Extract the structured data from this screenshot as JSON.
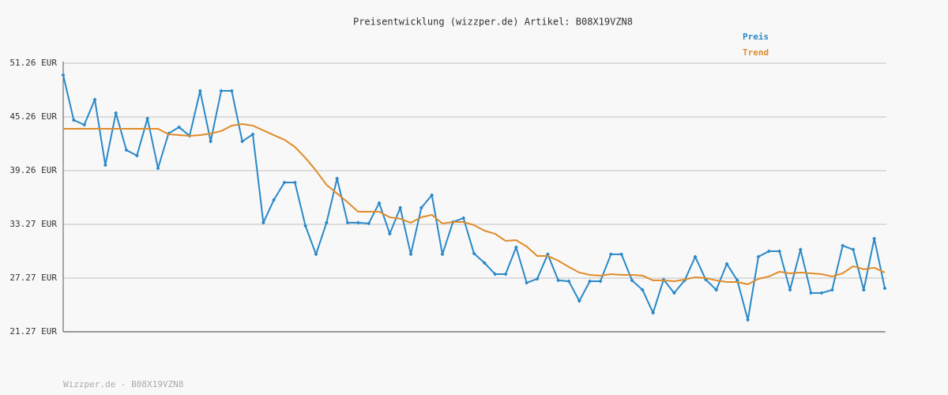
{
  "chart_data": {
    "type": "line",
    "title": "Preisentwicklung (wizzper.de) Artikel: B08X19VZN8",
    "footer": "Wizzper.de - B08X19VZN8",
    "legend": "top-right",
    "grid": true,
    "ylim": [
      21.27,
      51.26
    ],
    "yticks": [
      {
        "value": 21.27,
        "label": "21.27 EUR"
      },
      {
        "value": 27.27,
        "label": "27.27 EUR"
      },
      {
        "value": 33.27,
        "label": "33.27 EUR"
      },
      {
        "value": 39.26,
        "label": "39.26 EUR"
      },
      {
        "value": 45.26,
        "label": "45.26 EUR"
      },
      {
        "value": 51.26,
        "label": "51.26 EUR"
      }
    ],
    "series": [
      {
        "name": "Preis",
        "color": "#2a88c8",
        "markers": true,
        "values": [
          49.94,
          44.91,
          44.38,
          47.2,
          39.88,
          45.7,
          41.56,
          40.94,
          45.09,
          39.53,
          43.41,
          44.12,
          43.15,
          48.17,
          42.53,
          48.17,
          48.17,
          42.53,
          43.32,
          33.45,
          36.0,
          37.94,
          37.94,
          33.09,
          29.92,
          33.45,
          38.38,
          33.45,
          33.45,
          33.36,
          35.65,
          32.21,
          35.12,
          29.92,
          35.12,
          36.53,
          29.92,
          33.53,
          33.97,
          30.01,
          28.95,
          27.71,
          27.71,
          30.71,
          26.74,
          27.18,
          29.92,
          27.01,
          26.92,
          24.71,
          26.92,
          26.92,
          29.92,
          29.92,
          27.01,
          25.95,
          23.39,
          27.1,
          25.6,
          27.01,
          29.65,
          27.1,
          25.95,
          28.86,
          27.01,
          22.6,
          29.65,
          30.27,
          30.27,
          25.95,
          30.45,
          25.6,
          25.6,
          25.95,
          30.89,
          30.45,
          25.95,
          31.68,
          26.13
        ]
      },
      {
        "name": "Trend",
        "color": "#e08c28",
        "markers": false,
        "values": [
          43.94,
          43.94,
          43.94,
          43.94,
          43.94,
          43.94,
          43.94,
          43.94,
          43.94,
          43.94,
          43.32,
          43.23,
          43.15,
          43.23,
          43.41,
          43.68,
          44.29,
          44.47,
          44.29,
          43.76,
          43.23,
          42.71,
          41.91,
          40.68,
          39.27,
          37.68,
          36.71,
          35.74,
          34.68,
          34.68,
          34.68,
          34.06,
          33.89,
          33.45,
          34.06,
          34.33,
          33.36,
          33.53,
          33.53,
          33.18,
          32.56,
          32.21,
          31.42,
          31.5,
          30.8,
          29.74,
          29.74,
          29.21,
          28.51,
          27.89,
          27.62,
          27.54,
          27.71,
          27.62,
          27.62,
          27.54,
          27.01,
          27.01,
          26.92,
          27.1,
          27.36,
          27.27,
          27.01,
          26.83,
          26.83,
          26.57,
          27.18,
          27.45,
          27.98,
          27.8,
          27.89,
          27.8,
          27.71,
          27.45,
          27.8,
          28.6,
          28.25,
          28.42,
          27.89
        ]
      }
    ]
  }
}
